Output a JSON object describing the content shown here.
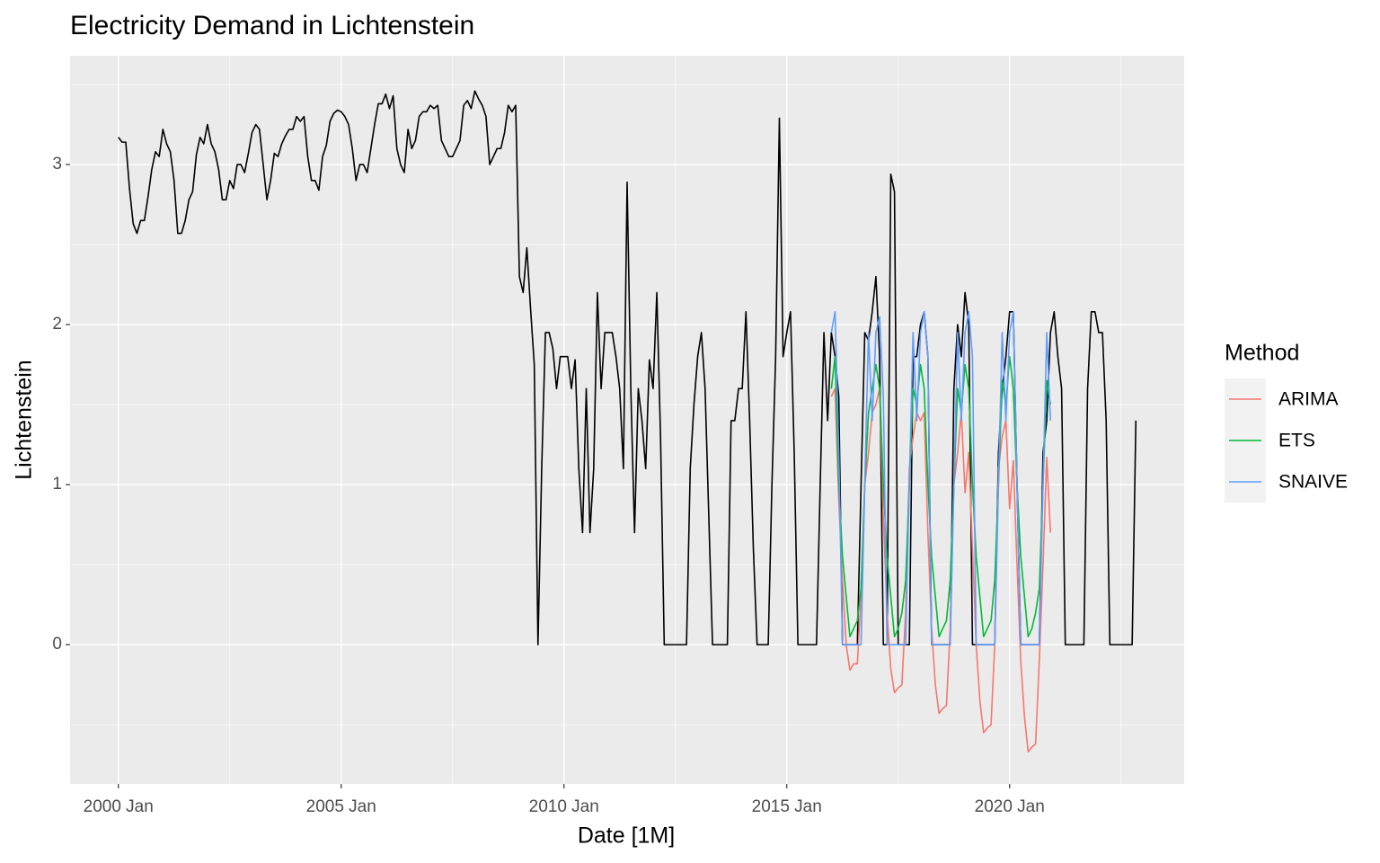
{
  "chart_data": {
    "type": "line",
    "title": "Electricity Demand in Lichtenstein",
    "x_label": "Date [1M]",
    "y_label": "Lichtenstein",
    "legend_title": "Method",
    "grid": true,
    "xlim": [
      "1998-12",
      "2023-12"
    ],
    "ylim": [
      -0.87,
      3.68
    ],
    "xticks": [
      {
        "value": "2000-01",
        "label": "2000 Jan"
      },
      {
        "value": "2005-01",
        "label": "2005 Jan"
      },
      {
        "value": "2010-01",
        "label": "2010 Jan"
      },
      {
        "value": "2015-01",
        "label": "2015 Jan"
      },
      {
        "value": "2020-01",
        "label": "2020 Jan"
      }
    ],
    "yticks": [
      0,
      1,
      2,
      3
    ],
    "x": [
      "2000-01",
      "2000-02",
      "2000-03",
      "2000-04",
      "2000-05",
      "2000-06",
      "2000-07",
      "2000-08",
      "2000-09",
      "2000-10",
      "2000-11",
      "2000-12",
      "2001-01",
      "2001-02",
      "2001-03",
      "2001-04",
      "2001-05",
      "2001-06",
      "2001-07",
      "2001-08",
      "2001-09",
      "2001-10",
      "2001-11",
      "2001-12",
      "2002-01",
      "2002-02",
      "2002-03",
      "2002-04",
      "2002-05",
      "2002-06",
      "2002-07",
      "2002-08",
      "2002-09",
      "2002-10",
      "2002-11",
      "2002-12",
      "2003-01",
      "2003-02",
      "2003-03",
      "2003-04",
      "2003-05",
      "2003-06",
      "2003-07",
      "2003-08",
      "2003-09",
      "2003-10",
      "2003-11",
      "2003-12",
      "2004-01",
      "2004-02",
      "2004-03",
      "2004-04",
      "2004-05",
      "2004-06",
      "2004-07",
      "2004-08",
      "2004-09",
      "2004-10",
      "2004-11",
      "2004-12",
      "2005-01",
      "2005-02",
      "2005-03",
      "2005-04",
      "2005-05",
      "2005-06",
      "2005-07",
      "2005-08",
      "2005-09",
      "2005-10",
      "2005-11",
      "2005-12",
      "2006-01",
      "2006-02",
      "2006-03",
      "2006-04",
      "2006-05",
      "2006-06",
      "2006-07",
      "2006-08",
      "2006-09",
      "2006-10",
      "2006-11",
      "2006-12",
      "2007-01",
      "2007-02",
      "2007-03",
      "2007-04",
      "2007-05",
      "2007-06",
      "2007-07",
      "2007-08",
      "2007-09",
      "2007-10",
      "2007-11",
      "2007-12",
      "2008-01",
      "2008-02",
      "2008-03",
      "2008-04",
      "2008-05",
      "2008-06",
      "2008-07",
      "2008-08",
      "2008-09",
      "2008-10",
      "2008-11",
      "2008-12",
      "2009-01",
      "2009-02",
      "2009-03",
      "2009-04",
      "2009-05",
      "2009-06",
      "2009-07",
      "2009-08",
      "2009-09",
      "2009-10",
      "2009-11",
      "2009-12",
      "2010-01",
      "2010-02",
      "2010-03",
      "2010-04",
      "2010-05",
      "2010-06",
      "2010-07",
      "2010-08",
      "2010-09",
      "2010-10",
      "2010-11",
      "2010-12",
      "2011-01",
      "2011-02",
      "2011-03",
      "2011-04",
      "2011-05",
      "2011-06",
      "2011-07",
      "2011-08",
      "2011-09",
      "2011-10",
      "2011-11",
      "2011-12",
      "2012-01",
      "2012-02",
      "2012-03",
      "2012-04",
      "2012-05",
      "2012-06",
      "2012-07",
      "2012-08",
      "2012-09",
      "2012-10",
      "2012-11",
      "2012-12",
      "2013-01",
      "2013-02",
      "2013-03",
      "2013-04",
      "2013-05",
      "2013-06",
      "2013-07",
      "2013-08",
      "2013-09",
      "2013-10",
      "2013-11",
      "2013-12",
      "2014-01",
      "2014-02",
      "2014-03",
      "2014-04",
      "2014-05",
      "2014-06",
      "2014-07",
      "2014-08",
      "2014-09",
      "2014-10",
      "2014-11",
      "2014-12",
      "2015-01",
      "2015-02",
      "2015-03",
      "2015-04",
      "2015-05",
      "2015-06",
      "2015-07",
      "2015-08",
      "2015-09",
      "2015-10",
      "2015-11",
      "2015-12",
      "2016-01",
      "2016-02",
      "2016-03",
      "2016-04",
      "2016-05",
      "2016-06",
      "2016-07",
      "2016-08",
      "2016-09",
      "2016-10",
      "2016-11",
      "2016-12",
      "2017-01",
      "2017-02",
      "2017-03",
      "2017-04",
      "2017-05",
      "2017-06",
      "2017-07",
      "2017-08",
      "2017-09",
      "2017-10",
      "2017-11",
      "2017-12",
      "2018-01",
      "2018-02",
      "2018-03",
      "2018-04",
      "2018-05",
      "2018-06",
      "2018-07",
      "2018-08",
      "2018-09",
      "2018-10",
      "2018-11",
      "2018-12",
      "2019-01",
      "2019-02",
      "2019-03",
      "2019-04",
      "2019-05",
      "2019-06",
      "2019-07",
      "2019-08",
      "2019-09",
      "2019-10",
      "2019-11",
      "2019-12",
      "2020-01",
      "2020-02",
      "2020-03",
      "2020-04",
      "2020-05",
      "2020-06",
      "2020-07",
      "2020-08",
      "2020-09",
      "2020-10",
      "2020-11",
      "2020-12",
      "2021-01",
      "2021-02",
      "2021-03",
      "2021-04",
      "2021-05",
      "2021-06",
      "2021-07",
      "2021-08",
      "2021-09",
      "2021-10",
      "2021-11",
      "2021-12",
      "2022-01",
      "2022-02",
      "2022-03",
      "2022-04",
      "2022-05",
      "2022-06",
      "2022-07",
      "2022-08",
      "2022-09",
      "2022-10",
      "2022-11"
    ],
    "series": [
      {
        "color": "#000000",
        "values": [
          3.17,
          3.14,
          3.14,
          2.85,
          2.63,
          2.57,
          2.65,
          2.65,
          2.8,
          2.97,
          3.08,
          3.05,
          3.22,
          3.13,
          3.08,
          2.9,
          2.57,
          2.57,
          2.65,
          2.78,
          2.83,
          3.06,
          3.17,
          3.13,
          3.25,
          3.13,
          3.08,
          2.97,
          2.78,
          2.78,
          2.9,
          2.85,
          3.0,
          3.0,
          2.95,
          3.07,
          3.2,
          3.25,
          3.22,
          3.0,
          2.78,
          2.9,
          3.07,
          3.05,
          3.13,
          3.18,
          3.22,
          3.22,
          3.3,
          3.27,
          3.3,
          3.05,
          2.9,
          2.9,
          2.84,
          3.05,
          3.12,
          3.27,
          3.32,
          3.34,
          3.33,
          3.3,
          3.25,
          3.1,
          2.9,
          3.0,
          3.0,
          2.95,
          3.1,
          3.25,
          3.38,
          3.38,
          3.44,
          3.35,
          3.43,
          3.1,
          3.0,
          2.95,
          3.22,
          3.1,
          3.15,
          3.3,
          3.33,
          3.33,
          3.37,
          3.35,
          3.37,
          3.15,
          3.1,
          3.05,
          3.05,
          3.1,
          3.15,
          3.37,
          3.4,
          3.35,
          3.46,
          3.41,
          3.37,
          3.3,
          3.0,
          3.05,
          3.1,
          3.1,
          3.2,
          3.37,
          3.33,
          3.37,
          2.3,
          2.2,
          2.48,
          2.1,
          1.75,
          0,
          1.1,
          1.95,
          1.95,
          1.85,
          1.6,
          1.8,
          1.8,
          1.8,
          1.6,
          1.78,
          1.1,
          0.7,
          1.6,
          0.7,
          1.1,
          2.2,
          1.6,
          1.95,
          1.95,
          1.95,
          1.8,
          1.6,
          1.1,
          2.89,
          1.6,
          0.7,
          1.6,
          1.4,
          1.1,
          1.78,
          1.6,
          2.2,
          1.3,
          0,
          0,
          0,
          0,
          0,
          0,
          0,
          1.1,
          1.5,
          1.8,
          1.95,
          1.6,
          0.8,
          0,
          0,
          0,
          0,
          0,
          1.4,
          1.4,
          1.6,
          1.6,
          2.08,
          1.4,
          0.6,
          0,
          0,
          0,
          0,
          1.0,
          1.8,
          3.29,
          1.8,
          1.95,
          2.08,
          1.2,
          0,
          0,
          0,
          0,
          0,
          0,
          1.0,
          1.95,
          1.4,
          1.95,
          1.8,
          1.55,
          0,
          0,
          0,
          0,
          0,
          1.0,
          1.95,
          1.9,
          2.08,
          2.3,
          1.8,
          0,
          0,
          2.94,
          2.83,
          0,
          0,
          0,
          0,
          1.8,
          1.8,
          2.0,
          2.08,
          1.8,
          0,
          0,
          0,
          0,
          0,
          0,
          1.6,
          2.0,
          1.8,
          2.2,
          2.0,
          0,
          0,
          0,
          0,
          0,
          0,
          0,
          1.2,
          1.6,
          1.8,
          2.08,
          2.08,
          1.0,
          0,
          0,
          0,
          0,
          0,
          0,
          1.2,
          1.4,
          1.95,
          2.08,
          1.8,
          1.6,
          0,
          0,
          0,
          0,
          0,
          0,
          1.6,
          2.08,
          2.08,
          1.95,
          1.95,
          1.4,
          0,
          0,
          0,
          0,
          0,
          0,
          0,
          1.4
        ]
      },
      {
        "name": "ARIMA",
        "color": "#F8766D",
        "x": [
          "2016-01",
          "2016-02",
          "2016-03",
          "2016-04",
          "2016-05",
          "2016-06",
          "2016-07",
          "2016-08",
          "2016-09",
          "2016-10",
          "2016-11",
          "2016-12",
          "2017-01",
          "2017-02",
          "2017-03",
          "2017-04",
          "2017-05",
          "2017-06",
          "2017-07",
          "2017-08",
          "2017-09",
          "2017-10",
          "2017-11",
          "2017-12",
          "2018-01",
          "2018-02",
          "2018-03",
          "2018-04",
          "2018-05",
          "2018-06",
          "2018-07",
          "2018-08",
          "2018-09",
          "2018-10",
          "2018-11",
          "2018-12",
          "2019-01",
          "2019-02",
          "2019-03",
          "2019-04",
          "2019-05",
          "2019-06",
          "2019-07",
          "2019-08",
          "2019-09",
          "2019-10",
          "2019-11",
          "2019-12",
          "2020-01",
          "2020-02",
          "2020-03",
          "2020-04",
          "2020-05",
          "2020-06",
          "2020-07",
          "2020-08",
          "2020-09",
          "2020-10",
          "2020-11",
          "2020-12"
        ],
        "values": [
          1.55,
          1.6,
          0.9,
          0.4,
          0.0,
          -0.16,
          -0.12,
          -0.12,
          0.3,
          1.0,
          1.2,
          1.45,
          1.5,
          1.6,
          0.8,
          0.2,
          -0.15,
          -0.3,
          -0.27,
          -0.25,
          0.2,
          1.1,
          1.3,
          1.45,
          1.4,
          1.45,
          0.7,
          0.1,
          -0.25,
          -0.43,
          -0.4,
          -0.38,
          0.1,
          1.0,
          1.2,
          1.45,
          0.95,
          1.2,
          0.6,
          0.0,
          -0.35,
          -0.55,
          -0.52,
          -0.5,
          0.0,
          1.1,
          1.3,
          1.4,
          0.85,
          1.15,
          0.5,
          -0.1,
          -0.45,
          -0.67,
          -0.64,
          -0.62,
          -0.1,
          0.5,
          1.17,
          0.7
        ]
      },
      {
        "name": "ETS",
        "color": "#00BA38",
        "x": [
          "2016-01",
          "2016-02",
          "2016-03",
          "2016-04",
          "2016-05",
          "2016-06",
          "2016-07",
          "2016-08",
          "2016-09",
          "2016-10",
          "2016-11",
          "2016-12",
          "2017-01",
          "2017-02",
          "2017-03",
          "2017-04",
          "2017-05",
          "2017-06",
          "2017-07",
          "2017-08",
          "2017-09",
          "2017-10",
          "2017-11",
          "2017-12",
          "2018-01",
          "2018-02",
          "2018-03",
          "2018-04",
          "2018-05",
          "2018-06",
          "2018-07",
          "2018-08",
          "2018-09",
          "2018-10",
          "2018-11",
          "2018-12",
          "2019-01",
          "2019-02",
          "2019-03",
          "2019-04",
          "2019-05",
          "2019-06",
          "2019-07",
          "2019-08",
          "2019-09",
          "2019-10",
          "2019-11",
          "2019-12",
          "2020-01",
          "2020-02",
          "2020-03",
          "2020-04",
          "2020-05",
          "2020-06",
          "2020-07",
          "2020-08",
          "2020-09",
          "2020-10",
          "2020-11",
          "2020-12"
        ],
        "values": [
          1.6,
          1.8,
          1.0,
          0.55,
          0.3,
          0.05,
          0.1,
          0.15,
          0.35,
          1.0,
          1.45,
          1.6,
          1.75,
          1.6,
          1.0,
          0.55,
          0.3,
          0.05,
          0.1,
          0.2,
          0.4,
          1.0,
          1.6,
          1.5,
          1.75,
          1.6,
          1.0,
          0.55,
          0.3,
          0.05,
          0.1,
          0.15,
          0.4,
          1.0,
          1.6,
          1.45,
          1.75,
          1.6,
          1.0,
          0.55,
          0.3,
          0.05,
          0.1,
          0.15,
          0.4,
          1.0,
          1.65,
          1.5,
          1.8,
          1.6,
          1.0,
          0.55,
          0.3,
          0.05,
          0.1,
          0.2,
          0.35,
          1.0,
          1.65,
          1.5
        ]
      },
      {
        "name": "SNAIVE",
        "color": "#619CFF",
        "x": [
          "2016-01",
          "2016-02",
          "2016-03",
          "2016-04",
          "2016-05",
          "2016-06",
          "2016-07",
          "2016-08",
          "2016-09",
          "2016-10",
          "2016-11",
          "2016-12",
          "2017-01",
          "2017-02",
          "2017-03",
          "2017-04",
          "2017-05",
          "2017-06",
          "2017-07",
          "2017-08",
          "2017-09",
          "2017-10",
          "2017-11",
          "2017-12",
          "2018-01",
          "2018-02",
          "2018-03",
          "2018-04",
          "2018-05",
          "2018-06",
          "2018-07",
          "2018-08",
          "2018-09",
          "2018-10",
          "2018-11",
          "2018-12",
          "2019-01",
          "2019-02",
          "2019-03",
          "2019-04",
          "2019-05",
          "2019-06",
          "2019-07",
          "2019-08",
          "2019-09",
          "2019-10",
          "2019-11",
          "2019-12",
          "2020-01",
          "2020-02",
          "2020-03",
          "2020-04",
          "2020-05",
          "2020-06",
          "2020-07",
          "2020-08",
          "2020-09",
          "2020-10",
          "2020-11",
          "2020-12"
        ],
        "values": [
          1.95,
          2.08,
          1.2,
          0,
          0,
          0,
          0,
          0,
          0,
          1.0,
          1.95,
          1.4,
          1.95,
          2.05,
          1.55,
          0,
          0,
          0,
          0,
          0,
          0,
          1.0,
          1.95,
          1.4,
          1.95,
          2.08,
          1.8,
          0,
          0,
          0,
          0,
          0,
          0,
          1.0,
          1.95,
          1.4,
          1.95,
          2.08,
          1.8,
          0,
          0,
          0,
          0,
          0,
          0,
          1.0,
          1.95,
          1.4,
          1.95,
          2.08,
          1.0,
          0,
          0,
          0,
          0,
          0,
          0,
          1.0,
          1.95,
          1.4
        ]
      }
    ]
  }
}
